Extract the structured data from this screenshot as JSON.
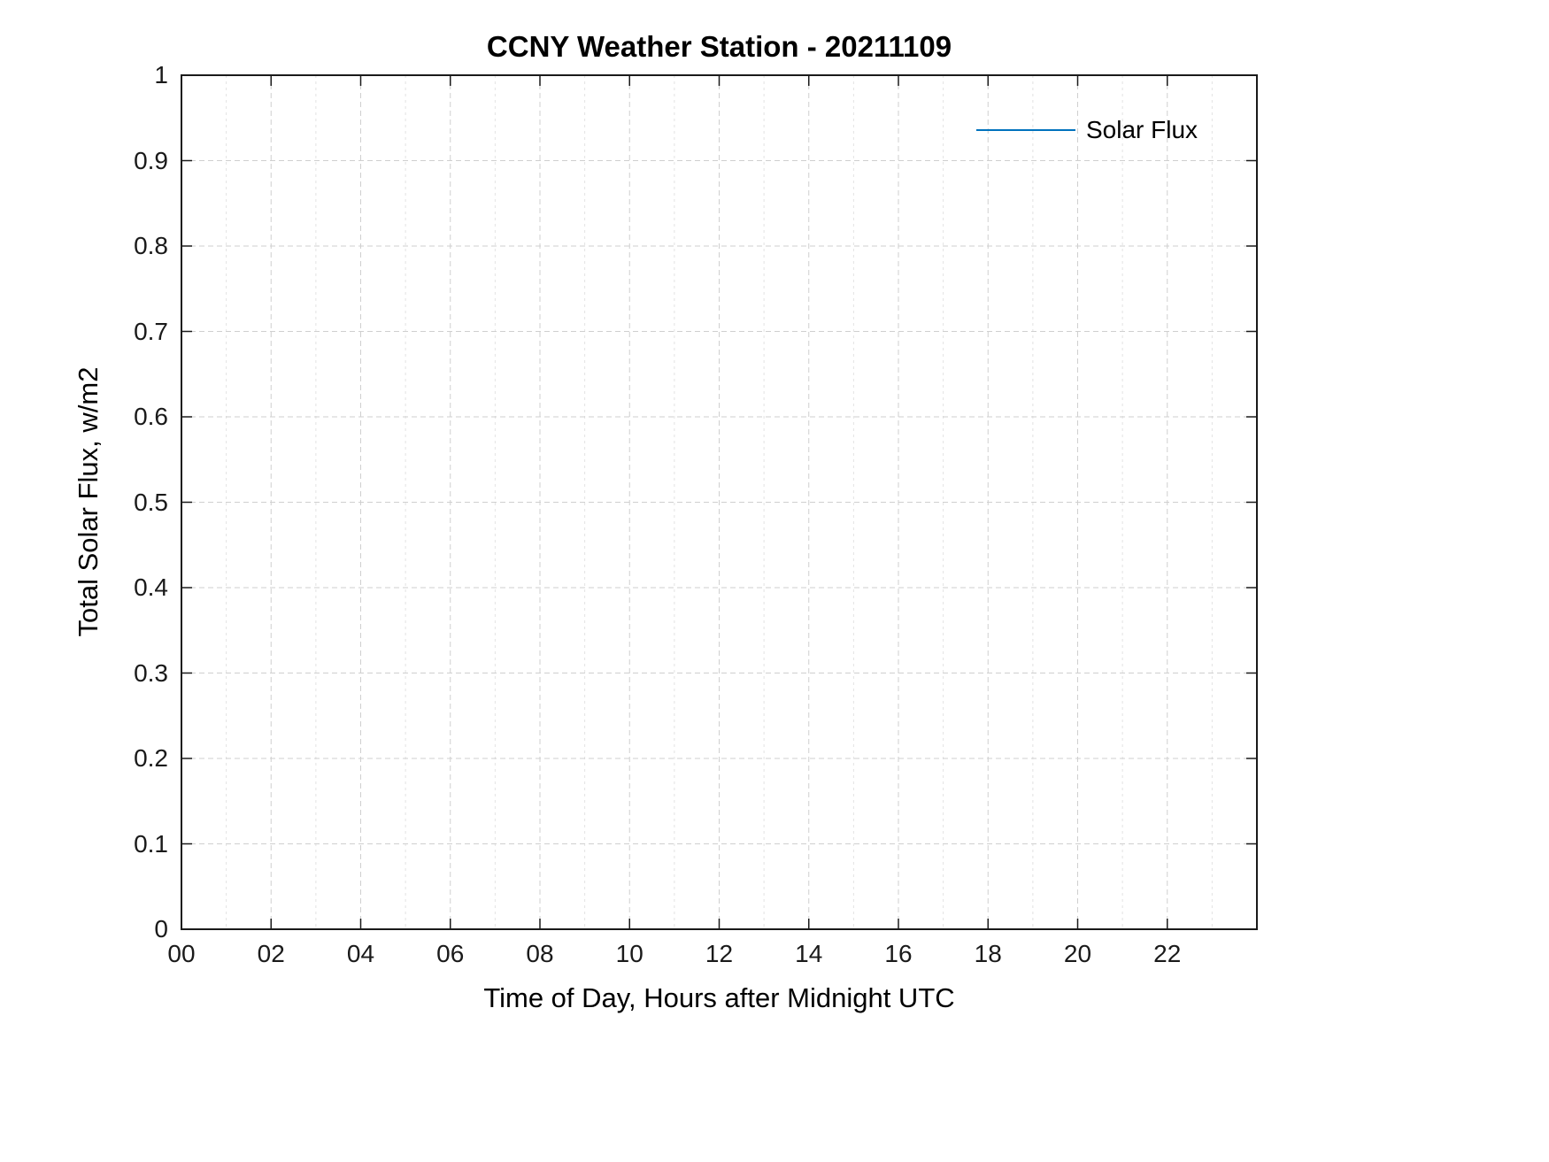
{
  "chart_data": {
    "type": "line",
    "title": "CCNY Weather Station - 20211109",
    "xlabel": "Time of Day, Hours after Midnight UTC",
    "ylabel": "Total Solar Flux, w/m2",
    "xlim": [
      0,
      24
    ],
    "ylim": [
      0,
      1
    ],
    "xticks": [
      0,
      2,
      4,
      6,
      8,
      10,
      12,
      14,
      16,
      18,
      20,
      22
    ],
    "xtick_labels": [
      "00",
      "02",
      "04",
      "06",
      "08",
      "10",
      "12",
      "14",
      "16",
      "18",
      "20",
      "22"
    ],
    "yticks": [
      0,
      0.1,
      0.2,
      0.3,
      0.4,
      0.5,
      0.6,
      0.7,
      0.8,
      0.9,
      1
    ],
    "ytick_labels": [
      "0",
      "0.1",
      "0.2",
      "0.3",
      "0.4",
      "0.5",
      "0.6",
      "0.7",
      "0.8",
      "0.9",
      "1"
    ],
    "grid": true,
    "minor_grid_x": true,
    "legend_position": "top-right",
    "series": [
      {
        "name": "Solar Flux",
        "color": "#0072BD",
        "x": [],
        "y": []
      }
    ]
  },
  "style": {
    "axis_color": "#1a1a1a",
    "major_grid_color": "#cfcfcf",
    "minor_grid_color": "#e2e2e2",
    "legend_line_color": "#0072BD"
  }
}
